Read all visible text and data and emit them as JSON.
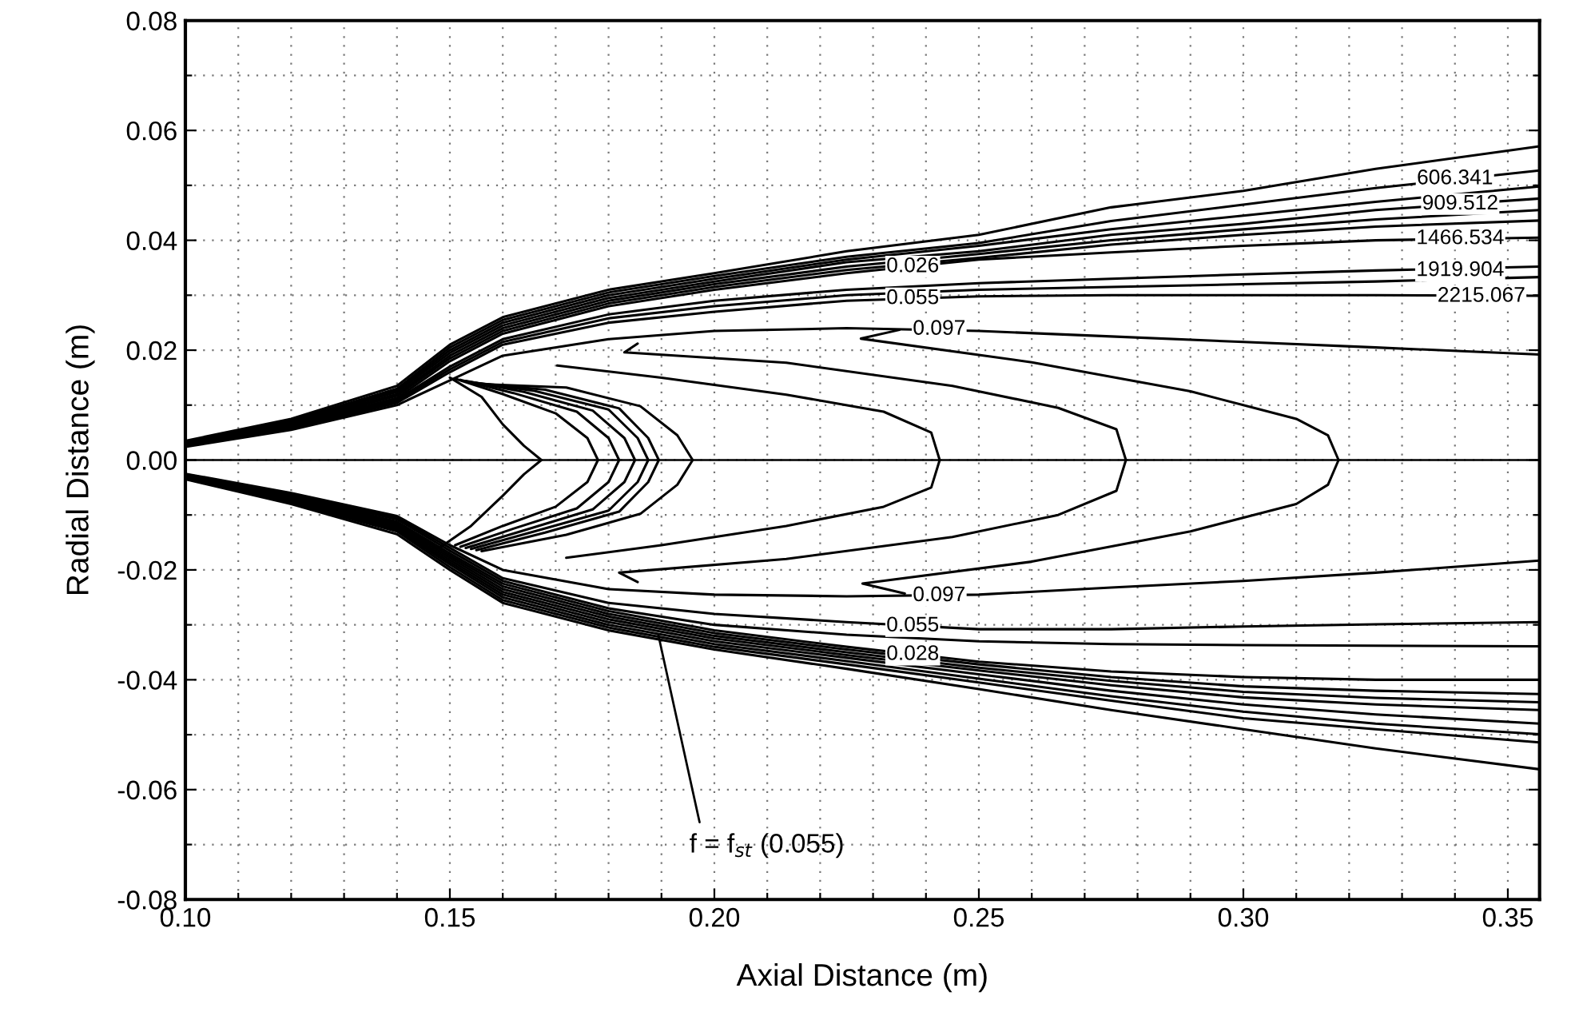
{
  "chart_data": {
    "type": "line",
    "xlabel": "Axial Distance (m)",
    "ylabel": "Radial Distance (m)",
    "xlim": [
      0.1,
      0.356
    ],
    "ylim": [
      -0.08,
      0.08
    ],
    "xticks": [
      {
        "value": 0.1,
        "label": "0.10"
      },
      {
        "value": 0.11,
        "label": null
      },
      {
        "value": 0.12,
        "label": null
      },
      {
        "value": 0.13,
        "label": null
      },
      {
        "value": 0.14,
        "label": null
      },
      {
        "value": 0.15,
        "label": "0.15"
      },
      {
        "value": 0.16,
        "label": null
      },
      {
        "value": 0.17,
        "label": null
      },
      {
        "value": 0.18,
        "label": null
      },
      {
        "value": 0.19,
        "label": null
      },
      {
        "value": 0.2,
        "label": "0.20"
      },
      {
        "value": 0.21,
        "label": null
      },
      {
        "value": 0.22,
        "label": null
      },
      {
        "value": 0.23,
        "label": null
      },
      {
        "value": 0.24,
        "label": null
      },
      {
        "value": 0.25,
        "label": "0.25"
      },
      {
        "value": 0.26,
        "label": null
      },
      {
        "value": 0.27,
        "label": null
      },
      {
        "value": 0.28,
        "label": null
      },
      {
        "value": 0.29,
        "label": null
      },
      {
        "value": 0.3,
        "label": "0.30"
      },
      {
        "value": 0.31,
        "label": null
      },
      {
        "value": 0.32,
        "label": null
      },
      {
        "value": 0.33,
        "label": null
      },
      {
        "value": 0.34,
        "label": null
      },
      {
        "value": 0.35,
        "label": "0.35"
      }
    ],
    "yticks": [
      {
        "value": -0.08,
        "label": "-0.08"
      },
      {
        "value": -0.07,
        "label": null
      },
      {
        "value": -0.06,
        "label": "-0.06"
      },
      {
        "value": -0.05,
        "label": null
      },
      {
        "value": -0.04,
        "label": "-0.04"
      },
      {
        "value": -0.03,
        "label": null
      },
      {
        "value": -0.02,
        "label": "-0.02"
      },
      {
        "value": -0.01,
        "label": null
      },
      {
        "value": 0.0,
        "label": "0.00"
      },
      {
        "value": 0.01,
        "label": null
      },
      {
        "value": 0.02,
        "label": "0.02"
      },
      {
        "value": 0.03,
        "label": null
      },
      {
        "value": 0.04,
        "label": "0.04"
      },
      {
        "value": 0.05,
        "label": null
      },
      {
        "value": 0.06,
        "label": "0.06"
      },
      {
        "value": 0.07,
        "label": null
      },
      {
        "value": 0.08,
        "label": "0.08"
      }
    ],
    "grid": true,
    "line_style": "solid",
    "marker": "none",
    "ref_lines": [
      {
        "axis": "y",
        "value": 0,
        "color": "#000000"
      }
    ],
    "x": [
      0.1,
      0.12,
      0.14,
      0.15,
      0.16,
      0.18,
      0.2,
      0.225,
      0.25,
      0.275,
      0.3,
      0.325,
      0.356
    ],
    "series": [
      {
        "color": "#000000",
        "values": [
          0.0035,
          0.0075,
          0.0135,
          0.021,
          0.026,
          0.031,
          0.034,
          0.038,
          0.041,
          0.046,
          0.049,
          0.053,
          0.0571
        ]
      },
      {
        "color": "#000000",
        "values": [
          0.0033,
          0.0072,
          0.013,
          0.0205,
          0.0255,
          0.0305,
          0.0335,
          0.037,
          0.0395,
          0.0435,
          0.0465,
          0.0495,
          0.0527
        ]
      },
      {
        "color": "#000000",
        "values": [
          0.0032,
          0.007,
          0.0127,
          0.02,
          0.025,
          0.03,
          0.033,
          0.0365,
          0.039,
          0.042,
          0.0445,
          0.047,
          0.0498
        ]
      },
      {
        "color": "#000000",
        "values": [
          0.0031,
          0.0068,
          0.0124,
          0.0195,
          0.0245,
          0.0295,
          0.0325,
          0.036,
          0.038,
          0.041,
          0.043,
          0.0455,
          0.0476
        ]
      },
      {
        "color": "#000000",
        "values": [
          0.003,
          0.0066,
          0.012,
          0.019,
          0.024,
          0.029,
          0.032,
          0.0352,
          0.0375,
          0.04,
          0.042,
          0.0438,
          0.0455
        ]
      },
      {
        "color": "#000000",
        "values": [
          0.0029,
          0.0064,
          0.0117,
          0.0185,
          0.0235,
          0.0285,
          0.0315,
          0.0346,
          0.0368,
          0.0392,
          0.041,
          0.0425,
          0.0436
        ]
      },
      {
        "color": "#000000",
        "values": [
          0.0028,
          0.0062,
          0.0113,
          0.018,
          0.023,
          0.028,
          0.031,
          0.034,
          0.0365,
          0.0378,
          0.039,
          0.04,
          0.0405
        ]
      },
      {
        "color": "#000000",
        "values": [
          0.0027,
          0.006,
          0.011,
          0.017,
          0.022,
          0.0265,
          0.029,
          0.031,
          0.0322,
          0.033,
          0.0338,
          0.0345,
          0.0352
        ]
      },
      {
        "color": "#000000",
        "values": [
          0.0026,
          0.0058,
          0.0107,
          0.0165,
          0.0215,
          0.0258,
          0.028,
          0.03,
          0.031,
          0.0315,
          0.032,
          0.0325,
          0.0333
        ]
      },
      {
        "color": "#000000",
        "values": [
          0.0025,
          0.0057,
          0.0104,
          0.016,
          0.021,
          0.025,
          0.027,
          0.029,
          0.0298,
          0.03,
          0.03,
          0.03,
          0.0299
        ]
      },
      {
        "color": "#000000",
        "values": [
          0.0024,
          0.0055,
          0.01,
          0.0145,
          0.019,
          0.022,
          0.0235,
          0.024,
          0.0235,
          0.0225,
          0.0215,
          0.0205,
          0.0192
        ]
      },
      {
        "color": "#000000",
        "values": [
          -0.0035,
          -0.008,
          -0.0135,
          -0.02,
          -0.026,
          -0.031,
          -0.0345,
          -0.038,
          -0.0417,
          -0.0455,
          -0.049,
          -0.0525,
          -0.0563
        ]
      },
      {
        "color": "#000000",
        "values": [
          -0.0034,
          -0.0078,
          -0.013,
          -0.0195,
          -0.0255,
          -0.0305,
          -0.034,
          -0.0372,
          -0.0405,
          -0.0438,
          -0.047,
          -0.049,
          -0.0514
        ]
      },
      {
        "color": "#000000",
        "values": [
          -0.0033,
          -0.0076,
          -0.0127,
          -0.019,
          -0.025,
          -0.03,
          -0.0335,
          -0.0366,
          -0.0398,
          -0.043,
          -0.0458,
          -0.048,
          -0.0499
        ]
      },
      {
        "color": "#000000",
        "values": [
          -0.0032,
          -0.0074,
          -0.0124,
          -0.0186,
          -0.0245,
          -0.0295,
          -0.033,
          -0.036,
          -0.039,
          -0.042,
          -0.0445,
          -0.0463,
          -0.048
        ]
      },
      {
        "color": "#000000",
        "values": [
          -0.0031,
          -0.0072,
          -0.0121,
          -0.0182,
          -0.024,
          -0.029,
          -0.0325,
          -0.0355,
          -0.0383,
          -0.041,
          -0.0432,
          -0.0445,
          -0.0455
        ]
      },
      {
        "color": "#000000",
        "values": [
          -0.003,
          -0.007,
          -0.0118,
          -0.0178,
          -0.0235,
          -0.0285,
          -0.032,
          -0.035,
          -0.0378,
          -0.0402,
          -0.0422,
          -0.0433,
          -0.0441
        ]
      },
      {
        "color": "#000000",
        "values": [
          -0.0029,
          -0.0068,
          -0.0115,
          -0.0174,
          -0.023,
          -0.028,
          -0.0315,
          -0.0345,
          -0.0372,
          -0.0395,
          -0.0412,
          -0.042,
          -0.0426
        ]
      },
      {
        "color": "#000000",
        "values": [
          -0.0028,
          -0.0066,
          -0.0112,
          -0.017,
          -0.0225,
          -0.0275,
          -0.031,
          -0.034,
          -0.0367,
          -0.0385,
          -0.0395,
          -0.04,
          -0.04
        ]
      },
      {
        "color": "#000000",
        "values": [
          -0.0027,
          -0.0064,
          -0.0108,
          -0.0165,
          -0.022,
          -0.027,
          -0.03,
          -0.0318,
          -0.033,
          -0.0335,
          -0.0337,
          -0.0338,
          -0.0339
        ]
      },
      {
        "color": "#000000",
        "values": [
          -0.0026,
          -0.0062,
          -0.0105,
          -0.016,
          -0.0215,
          -0.026,
          -0.028,
          -0.0295,
          -0.0308,
          -0.0308,
          -0.0303,
          -0.0299,
          -0.0295
        ]
      },
      {
        "color": "#000000",
        "values": [
          -0.0025,
          -0.006,
          -0.0102,
          -0.0155,
          -0.02,
          -0.0235,
          -0.0245,
          -0.0248,
          -0.0245,
          -0.0232,
          -0.022,
          -0.0205,
          -0.0183
        ]
      },
      {
        "color": "#000000",
        "x": [
          0.15,
          0.156,
          0.16,
          0.164,
          0.1673,
          0.164,
          0.16,
          0.154,
          0.148
        ],
        "values": [
          0.015,
          0.0115,
          0.0065,
          0.0026,
          0.0,
          -0.0026,
          -0.0065,
          -0.012,
          -0.016
        ]
      },
      {
        "color": "#000000",
        "x": [
          0.151,
          0.16,
          0.17,
          0.176,
          0.178,
          0.176,
          0.17,
          0.16,
          0.151
        ],
        "values": [
          0.0148,
          0.012,
          0.0085,
          0.004,
          0.0,
          -0.004,
          -0.0085,
          -0.012,
          -0.0155
        ]
      },
      {
        "color": "#000000",
        "x": [
          0.152,
          0.162,
          0.174,
          0.18,
          0.182,
          0.18,
          0.174,
          0.162,
          0.152
        ],
        "values": [
          0.0146,
          0.0122,
          0.0088,
          0.004,
          0.0,
          -0.004,
          -0.0088,
          -0.0125,
          -0.0158
        ]
      },
      {
        "color": "#000000",
        "x": [
          0.153,
          0.164,
          0.177,
          0.183,
          0.185,
          0.183,
          0.177,
          0.164,
          0.153
        ],
        "values": [
          0.0144,
          0.0124,
          0.009,
          0.004,
          0.0,
          -0.004,
          -0.009,
          -0.0128,
          -0.016
        ]
      },
      {
        "color": "#000000",
        "x": [
          0.154,
          0.166,
          0.18,
          0.1855,
          0.1875,
          0.1855,
          0.18,
          0.166,
          0.154
        ],
        "values": [
          0.0142,
          0.0126,
          0.0092,
          0.004,
          0.0,
          -0.004,
          -0.0092,
          -0.013,
          -0.0162
        ]
      },
      {
        "color": "#000000",
        "x": [
          0.155,
          0.168,
          0.182,
          0.1875,
          0.1895,
          0.1875,
          0.182,
          0.168,
          0.155
        ],
        "values": [
          0.014,
          0.0128,
          0.0094,
          0.004,
          0.0,
          -0.004,
          -0.0094,
          -0.0132,
          -0.0164
        ]
      },
      {
        "color": "#000000",
        "x": [
          0.156,
          0.172,
          0.186,
          0.193,
          0.1959,
          0.193,
          0.186,
          0.172,
          0.156
        ],
        "values": [
          0.0138,
          0.0132,
          0.0098,
          0.0045,
          0.0,
          -0.0045,
          -0.0098,
          -0.0136,
          -0.0166
        ]
      },
      {
        "color": "#000000",
        "x": [
          0.1703,
          0.19,
          0.2136,
          0.232,
          0.241,
          0.2426,
          0.241,
          0.232,
          0.2136,
          0.19,
          0.172
        ],
        "values": [
          0.0172,
          0.015,
          0.0119,
          0.0088,
          0.005,
          0.0,
          -0.005,
          -0.0085,
          -0.012,
          -0.0155,
          -0.0178
        ]
      },
      {
        "color": "#000000",
        "x": [
          0.1855,
          0.183,
          0.2136,
          0.245,
          0.265,
          0.276,
          0.2778,
          0.276,
          0.265,
          0.245,
          0.2136,
          0.182,
          0.1855
        ],
        "values": [
          0.0212,
          0.0196,
          0.0177,
          0.0135,
          0.0095,
          0.0056,
          0.0,
          -0.0056,
          -0.01,
          -0.014,
          -0.018,
          -0.0205,
          -0.0222
        ]
      },
      {
        "color": "#000000",
        "x": [
          0.235,
          0.2277,
          0.26,
          0.29,
          0.31,
          0.316,
          0.318,
          0.316,
          0.31,
          0.29,
          0.26,
          0.228,
          0.236
        ],
        "values": [
          0.0237,
          0.0221,
          0.0178,
          0.0125,
          0.0075,
          0.0045,
          0.0,
          -0.0045,
          -0.008,
          -0.013,
          -0.0185,
          -0.0225,
          -0.0243
        ]
      }
    ],
    "annotations": [
      {
        "text": "606.341",
        "x": 0.34,
        "y": 0.0512
      },
      {
        "text": "909.512",
        "x": 0.341,
        "y": 0.0466
      },
      {
        "text": "1466.534",
        "x": 0.341,
        "y": 0.0403
      },
      {
        "text": "1919.904",
        "x": 0.341,
        "y": 0.0345
      },
      {
        "text": "2215.067",
        "x": 0.345,
        "y": 0.0298
      },
      {
        "text": "0.026",
        "x": 0.2375,
        "y": 0.0352
      },
      {
        "text": "0.055",
        "x": 0.2375,
        "y": 0.0294
      },
      {
        "text": "0.097",
        "x": 0.2425,
        "y": 0.0238
      },
      {
        "text": "0.097",
        "x": 0.2425,
        "y": -0.0247
      },
      {
        "text": "0.055",
        "x": 0.2375,
        "y": -0.0302
      },
      {
        "text": "0.028",
        "x": 0.2375,
        "y": -0.0354
      },
      {
        "text": "f = f$_{st}$ (0.055)",
        "x": 0.1894,
        "y": -0.0318
      }
    ]
  }
}
